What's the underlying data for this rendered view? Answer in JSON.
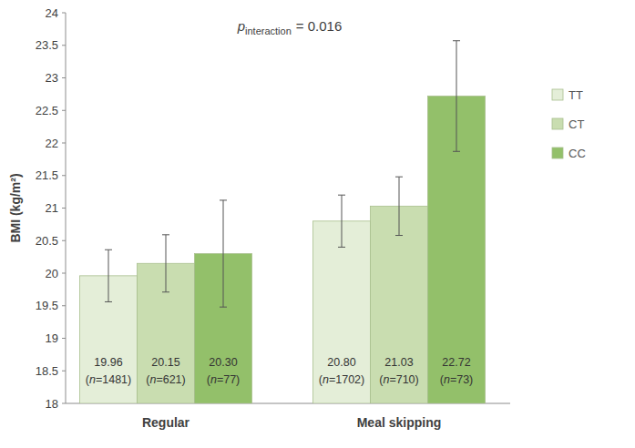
{
  "chart_data": {
    "type": "bar",
    "annotation": {
      "symbol": "p",
      "subscript": "interaction",
      "text": "= 0.016"
    },
    "y_label": "BMI (kg/m²)",
    "categories": [
      "Regular",
      "Meal skipping"
    ],
    "series": [
      {
        "name": "TT",
        "color": "#e4eed8",
        "values": [
          19.96,
          20.8
        ],
        "value_labels": [
          "19.96",
          "20.80"
        ],
        "errors": [
          0.4,
          0.4
        ],
        "n_labels": [
          "(n=1481)",
          "(n=1702)"
        ]
      },
      {
        "name": "CT",
        "color": "#c9ddb0",
        "values": [
          20.15,
          21.03
        ],
        "value_labels": [
          "20.15",
          "21.03"
        ],
        "errors": [
          0.44,
          0.45
        ],
        "n_labels": [
          "(n=621)",
          "(n=710)"
        ]
      },
      {
        "name": "CC",
        "color": "#93c06a",
        "values": [
          20.3,
          22.72
        ],
        "value_labels": [
          "20.30",
          "22.72"
        ],
        "errors": [
          0.82,
          0.85
        ],
        "n_labels": [
          "(n=77)",
          "(n=73)"
        ]
      }
    ],
    "ylim": [
      18,
      24
    ],
    "yticks": [
      18,
      18.5,
      19,
      19.5,
      20,
      20.5,
      21,
      21.5,
      22,
      22.5,
      23,
      23.5,
      24
    ],
    "grid": false,
    "legend": "right",
    "data_labels": true
  }
}
